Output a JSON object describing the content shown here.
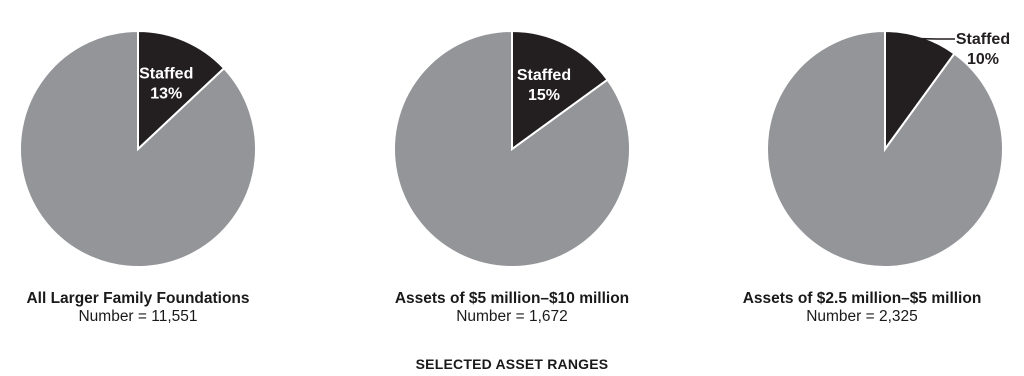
{
  "colors": {
    "highlight": "#231f20",
    "remainder": "#939598",
    "label_on_dark": "#ffffff",
    "label_outside": "#231f20",
    "slice_border": "#ffffff"
  },
  "chart_data": [
    {
      "type": "pie",
      "title": "All Larger Family Foundations",
      "subtitle": "Number = 11,551",
      "slices": [
        {
          "label": "Staffed",
          "value": 13,
          "value_label": "13%",
          "color": "#231f20",
          "label_position": "inside"
        },
        {
          "label": "",
          "value": 87,
          "color": "#939598"
        }
      ]
    },
    {
      "type": "pie",
      "title": "Assets of $5 million–$10 million",
      "subtitle": "Number = 1,672",
      "slices": [
        {
          "label": "Staffed",
          "value": 15,
          "value_label": "15%",
          "color": "#231f20",
          "label_position": "inside"
        },
        {
          "label": "",
          "value": 85,
          "color": "#939598"
        }
      ]
    },
    {
      "type": "pie",
      "title": "Assets of $2.5 million–$5 million",
      "subtitle": "Number = 2,325",
      "slices": [
        {
          "label": "Staffed",
          "value": 10,
          "value_label": "10%",
          "color": "#231f20",
          "label_position": "outside-callout"
        },
        {
          "label": "",
          "value": 90,
          "color": "#939598"
        }
      ]
    }
  ],
  "footer": {
    "group_label": "SELECTED ASSET RANGES"
  }
}
